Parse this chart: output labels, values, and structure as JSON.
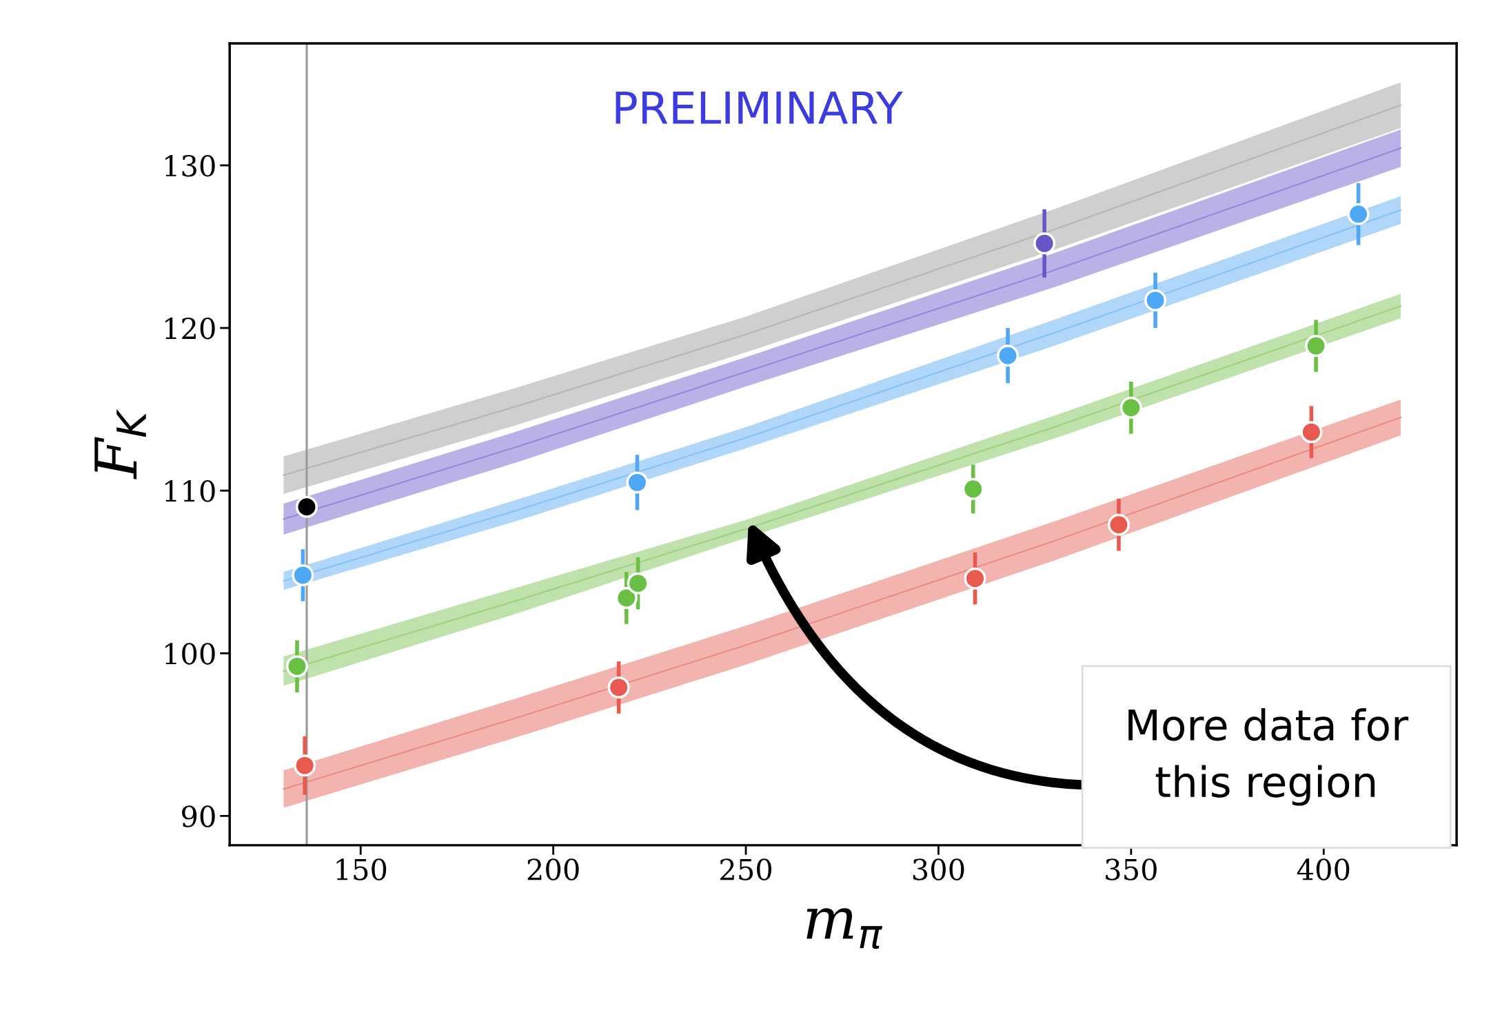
{
  "chart_data": {
    "type": "scatter",
    "xlabel": "m$_{π}$",
    "ylabel": "F$_{K}$",
    "xlim": [
      116,
      434.5
    ],
    "ylim": [
      88.2,
      137.5
    ],
    "xticks": [
      150,
      200,
      250,
      300,
      350,
      400
    ],
    "yticks": [
      90,
      100,
      110,
      120,
      130
    ],
    "grid": false,
    "marker": "circle",
    "ref_lines": [
      {
        "axis": "x",
        "value": 136,
        "color": "#999999"
      }
    ],
    "annotations": [
      "PRELIMINARY",
      "More data for\nthis region"
    ],
    "series": [
      {
        "type": "line",
        "marker": "none",
        "color": "#b5b5b5",
        "x": [
          130,
          190,
          250,
          330,
          420
        ],
        "values": [
          110.95,
          115.15,
          119.6,
          126.05,
          133.7
        ],
        "lower": [
          109.8,
          114.0,
          118.5,
          124.8,
          132.3
        ],
        "upper": [
          112.1,
          116.3,
          120.7,
          127.3,
          135.1
        ]
      },
      {
        "type": "line",
        "marker": "none",
        "color": "#9488d8",
        "x": [
          130,
          190,
          250,
          330,
          420
        ],
        "values": [
          108.25,
          112.65,
          117.3,
          123.55,
          131.05
        ],
        "lower": [
          107.3,
          111.7,
          116.4,
          122.5,
          129.9
        ],
        "upper": [
          109.2,
          113.6,
          118.2,
          124.6,
          132.2
        ]
      },
      {
        "type": "line",
        "marker": "none",
        "color": "#85c1f6",
        "x": [
          130,
          190,
          250,
          330,
          420
        ],
        "values": [
          104.45,
          108.75,
          113.25,
          119.7,
          127.25
        ],
        "lower": [
          103.9,
          108.1,
          112.6,
          118.9,
          126.4
        ],
        "upper": [
          105.0,
          109.4,
          113.9,
          120.5,
          128.1
        ]
      },
      {
        "type": "line",
        "marker": "none",
        "color": "#9dd17e",
        "x": [
          130,
          190,
          250,
          330,
          420
        ],
        "values": [
          98.9,
          103.2,
          107.65,
          113.9,
          121.35
        ],
        "lower": [
          98.0,
          102.4,
          107.1,
          113.2,
          120.6
        ],
        "upper": [
          99.8,
          104.0,
          108.2,
          114.6,
          122.1
        ]
      },
      {
        "type": "line",
        "marker": "none",
        "color": "#ec8a84",
        "x": [
          130,
          190,
          250,
          330,
          420
        ],
        "values": [
          91.65,
          96.0,
          100.5,
          106.9,
          114.5
        ],
        "lower": [
          90.5,
          94.8,
          99.3,
          105.7,
          113.4
        ],
        "upper": [
          92.8,
          97.2,
          101.7,
          108.1,
          115.6
        ]
      },
      {
        "type": "scatter",
        "color": "#000000",
        "x": [
          136
        ],
        "values": [
          109.0
        ]
      },
      {
        "type": "scatter",
        "color": "#6a55c8",
        "x": [
          327.5
        ],
        "values": [
          125.2
        ],
        "errors": [
          2.1
        ]
      },
      {
        "type": "scatter",
        "color": "#4fa8f5",
        "x": [
          135,
          221.8,
          318,
          356.3,
          409
        ],
        "values": [
          104.8,
          110.5,
          118.3,
          121.7,
          127.0
        ],
        "errors": [
          1.6,
          1.7,
          1.7,
          1.7,
          1.9
        ]
      },
      {
        "type": "scatter",
        "color": "#6abf45",
        "x": [
          133.5,
          219,
          222,
          309,
          350,
          398
        ],
        "values": [
          99.2,
          103.4,
          104.3,
          110.1,
          115.1,
          118.9
        ],
        "errors": [
          1.6,
          1.6,
          1.6,
          1.5,
          1.6,
          1.6
        ]
      },
      {
        "type": "scatter",
        "color": "#e85a50",
        "x": [
          135.5,
          217,
          309.5,
          346.8,
          396.8
        ],
        "values": [
          93.1,
          97.9,
          104.6,
          107.9,
          113.6
        ],
        "errors": [
          1.8,
          1.6,
          1.6,
          1.6,
          1.6
        ]
      }
    ]
  }
}
